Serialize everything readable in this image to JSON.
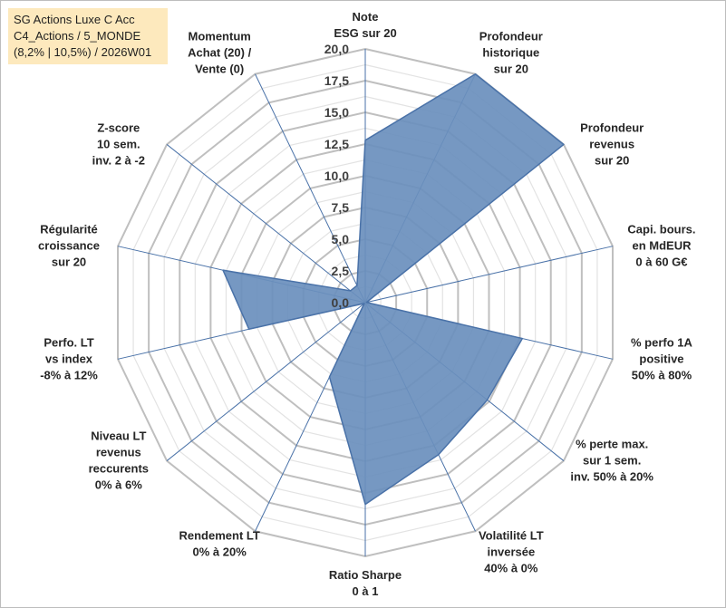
{
  "title": {
    "line1": "SG Actions Luxe C Acc",
    "line2": "C4_Actions / 5_MONDE",
    "line3": "(8,2% | 10,5%) / 2026W01"
  },
  "chart_data": {
    "type": "radar",
    "rmin": 0,
    "rmax": 20,
    "tick_step": 2.5,
    "tick_labels": [
      "0,0",
      "2,5",
      "5,0",
      "7,5",
      "10,0",
      "12,5",
      "15,0",
      "17,5",
      "20,0"
    ],
    "grid": true,
    "fill_color": "#6a8fbd",
    "line_color": "#4a72a8",
    "grid_color": "#bfbfbf",
    "axes": [
      {
        "label": [
          "Note",
          "ESG sur 20"
        ],
        "value": 12.8
      },
      {
        "label": [
          "Profondeur",
          "historique",
          "sur 20"
        ],
        "value": 20.0
      },
      {
        "label": [
          "Profondeur",
          "revenus",
          "sur 20"
        ],
        "value": 20.0
      },
      {
        "label": [
          "Capi. bours.",
          "en MdEUR",
          "0 à 60 G€"
        ],
        "value": 0.1
      },
      {
        "label": [
          "% perfo 1A",
          "positive",
          "50% à 80%"
        ],
        "value": 12.7
      },
      {
        "label": [
          "% perte max.",
          "sur 1 sem.",
          "inv. 50% à 20%"
        ],
        "value": 12.3
      },
      {
        "label": [
          "Volatilité LT",
          "inversée",
          "40% à 0%"
        ],
        "value": 13.3
      },
      {
        "label": [
          "Ratio Sharpe",
          "0 à 1"
        ],
        "value": 15.9
      },
      {
        "label": [
          "Rendement LT",
          "0% à 20%"
        ],
        "value": 6.5
      },
      {
        "label": [
          "Niveau LT",
          "revenus",
          "reccurents",
          "0% à 6%"
        ],
        "value": 0.1
      },
      {
        "label": [
          "Perfo. LT",
          "vs index",
          "-8% à 12%"
        ],
        "value": 9.4
      },
      {
        "label": [
          "Régularité",
          "croissance",
          "sur 20"
        ],
        "value": 11.5
      },
      {
        "label": [
          "Z-score",
          "10 sem.",
          "inv. 2 à -2"
        ],
        "value": 1.5
      },
      {
        "label": [
          "Momentum",
          "Achat (20) /",
          "Vente (0)"
        ],
        "value": 1.5
      }
    ]
  }
}
